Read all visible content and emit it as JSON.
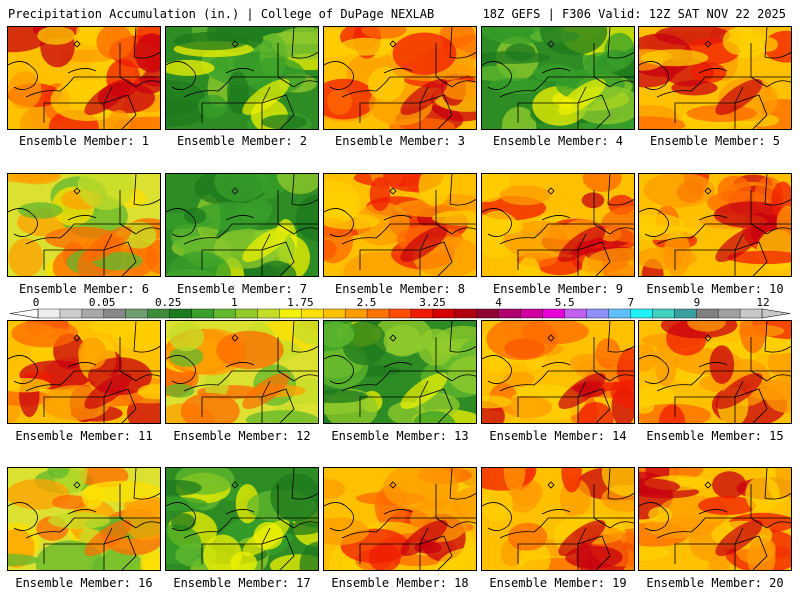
{
  "header": {
    "left_title": "Precipitation Accumulation (in.) | College of DuPage NEXLAB",
    "right_title": "18Z GEFS | F306 Valid: 12Z SAT NOV 22 2025"
  },
  "caption_prefix": "Ensemble Member: ",
  "members": [
    {
      "label": "Ensemble Member: 1"
    },
    {
      "label": "Ensemble Member: 2"
    },
    {
      "label": "Ensemble Member: 3"
    },
    {
      "label": "Ensemble Member: 4"
    },
    {
      "label": "Ensemble Member: 5"
    },
    {
      "label": "Ensemble Member: 6"
    },
    {
      "label": "Ensemble Member: 7"
    },
    {
      "label": "Ensemble Member: 8"
    },
    {
      "label": "Ensemble Member: 9"
    },
    {
      "label": "Ensemble Member: 10"
    },
    {
      "label": "Ensemble Member: 11"
    },
    {
      "label": "Ensemble Member: 12"
    },
    {
      "label": "Ensemble Member: 13"
    },
    {
      "label": "Ensemble Member: 14"
    },
    {
      "label": "Ensemble Member: 15"
    },
    {
      "label": "Ensemble Member: 16"
    },
    {
      "label": "Ensemble Member: 17"
    },
    {
      "label": "Ensemble Member: 18"
    },
    {
      "label": "Ensemble Member: 19"
    },
    {
      "label": "Ensemble Member: 20"
    }
  ],
  "member_tone": [
    "wet",
    "dry",
    "wet",
    "dry",
    "wet",
    "mixed",
    "dry",
    "wet",
    "wet",
    "wet",
    "wet",
    "mixed",
    "dry",
    "wet",
    "wet",
    "mixed",
    "dry",
    "wet",
    "wet",
    "wet"
  ],
  "colorbar": {
    "tick_labels": [
      "0",
      "0.05",
      "0.25",
      "1",
      "1.75",
      "2.5",
      "3.25",
      "4",
      "5.5",
      "7",
      "9",
      "12"
    ],
    "colors": [
      "#eeeeee",
      "#cccccc",
      "#a8a8a8",
      "#888888",
      "#6e9e6e",
      "#3c8c3c",
      "#1e7a1e",
      "#38a02a",
      "#62b82e",
      "#92cc2c",
      "#c4de28",
      "#f2f200",
      "#ffe000",
      "#ffc000",
      "#ff9c00",
      "#ff7400",
      "#ff4c00",
      "#f01c00",
      "#d40000",
      "#b00010",
      "#900030",
      "#b00070",
      "#d000a0",
      "#e800d8",
      "#c060f0",
      "#9090ff",
      "#60c0ff",
      "#20f0f8",
      "#40d0c0",
      "#3aa0a0",
      "#808080",
      "#a0a0a0",
      "#c8c8c8"
    ]
  },
  "colors": {
    "border": "#000000",
    "map_lines": "#000000"
  }
}
